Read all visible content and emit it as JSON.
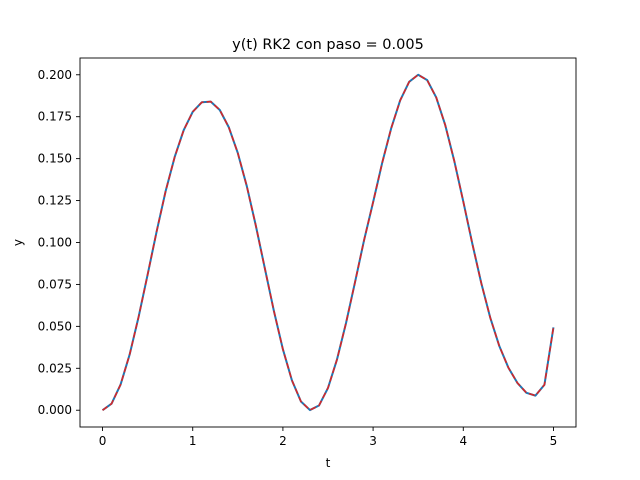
{
  "chart_data": {
    "type": "line",
    "title": "y(t) RK2 con paso = 0.005",
    "xlabel": "t",
    "ylabel": "y",
    "xlim": [
      -0.25,
      5.25
    ],
    "ylim": [
      -0.01,
      0.21
    ],
    "xticks": [
      0,
      1,
      2,
      3,
      4,
      5
    ],
    "xtick_labels": [
      "0",
      "1",
      "2",
      "3",
      "4",
      "5"
    ],
    "yticks": [
      0.0,
      0.025,
      0.05,
      0.075,
      0.1,
      0.125,
      0.15,
      0.175,
      0.2
    ],
    "ytick_labels": [
      "0.000",
      "0.025",
      "0.050",
      "0.075",
      "0.100",
      "0.125",
      "0.150",
      "0.175",
      "0.200"
    ],
    "grid": false,
    "legend": "none",
    "x": [
      0.0,
      0.1,
      0.2,
      0.3,
      0.4,
      0.5,
      0.6,
      0.7,
      0.8,
      0.9,
      1.0,
      1.1,
      1.2,
      1.3,
      1.4,
      1.5,
      1.6,
      1.7,
      1.8,
      1.9,
      2.0,
      2.1,
      2.2,
      2.3,
      2.4,
      2.5,
      2.6,
      2.7,
      2.8,
      2.9,
      3.0,
      3.1,
      3.2,
      3.3,
      3.4,
      3.5,
      3.6,
      3.7,
      3.8,
      3.9,
      4.0,
      4.1,
      4.2,
      4.3,
      4.4,
      4.5,
      4.6,
      4.7,
      4.8,
      4.9,
      5.0
    ],
    "series": [
      {
        "style": "solid",
        "color": "#1f77b4",
        "values": [
          0.0,
          0.0039,
          0.0153,
          0.0331,
          0.0557,
          0.0809,
          0.1066,
          0.1307,
          0.151,
          0.167,
          0.1779,
          0.1836,
          0.184,
          0.179,
          0.1687,
          0.1533,
          0.1335,
          0.11,
          0.0845,
          0.0592,
          0.0363,
          0.0178,
          0.0052,
          0.0001,
          0.0028,
          0.0133,
          0.0303,
          0.052,
          0.0764,
          0.1014,
          0.124,
          0.1473,
          0.168,
          0.1847,
          0.1958,
          0.2,
          0.1968,
          0.1865,
          0.17,
          0.1487,
          0.1245,
          0.0994,
          0.0757,
          0.055,
          0.0382,
          0.0254,
          0.0163,
          0.0104,
          0.0087,
          0.0152,
          0.0494
        ]
      },
      {
        "style": "dashed",
        "color": "#d62728",
        "values": [
          0.0,
          0.0039,
          0.0153,
          0.0331,
          0.0557,
          0.0809,
          0.1066,
          0.1307,
          0.151,
          0.167,
          0.1779,
          0.1836,
          0.184,
          0.179,
          0.1687,
          0.1533,
          0.1335,
          0.11,
          0.0845,
          0.0592,
          0.0363,
          0.0178,
          0.0052,
          0.0001,
          0.0028,
          0.0133,
          0.0303,
          0.052,
          0.0764,
          0.1014,
          0.124,
          0.1473,
          0.168,
          0.1847,
          0.1958,
          0.2,
          0.1968,
          0.1865,
          0.17,
          0.1487,
          0.1245,
          0.0994,
          0.0757,
          0.055,
          0.0382,
          0.0254,
          0.0163,
          0.0104,
          0.0087,
          0.0152,
          0.0494
        ]
      }
    ]
  }
}
